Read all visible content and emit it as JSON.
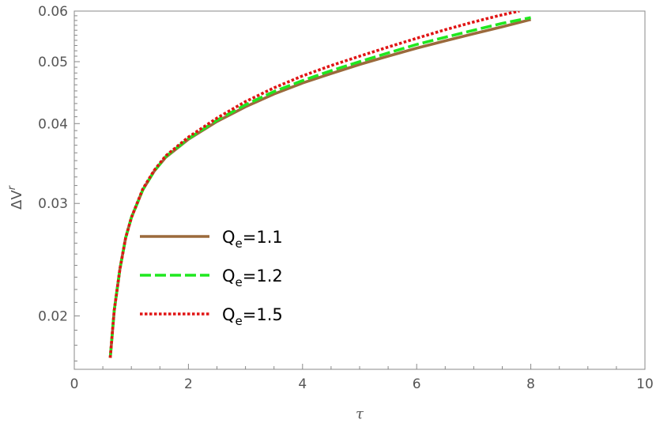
{
  "chart_data": {
    "type": "line",
    "title": "",
    "xlabel": "τ",
    "ylabel": "ΔV",
    "ylabel_sup": "r",
    "xlim": [
      0,
      10
    ],
    "ylim": [
      0.0165,
      0.06
    ],
    "yscale": "log",
    "x_ticks": [
      0,
      2,
      4,
      6,
      8,
      10
    ],
    "x_tick_labels": [
      "0",
      "2",
      "4",
      "6",
      "8",
      "10"
    ],
    "y_ticks": [
      0.02,
      0.03,
      0.04,
      0.05,
      0.06
    ],
    "y_tick_labels": [
      "0.02",
      "0.03",
      "0.04",
      "0.05",
      "0.06"
    ],
    "grid": false,
    "legend_position": "center-left",
    "series": [
      {
        "name": "Q_e=1.1",
        "legend_base": "Q",
        "legend_sub": "e",
        "legend_rest": "=1.1",
        "color": "#9b6a3c",
        "dash": "solid",
        "x": [
          0.63,
          0.7,
          0.8,
          0.9,
          1.0,
          1.2,
          1.4,
          1.6,
          2.0,
          2.5,
          3.0,
          3.5,
          4.0,
          4.5,
          5.0,
          5.5,
          6.0,
          6.5,
          7.0,
          7.5,
          8.0
        ],
        "y": [
          0.0172,
          0.0204,
          0.0237,
          0.0265,
          0.0285,
          0.0315,
          0.0337,
          0.0354,
          0.0378,
          0.0403,
          0.0425,
          0.0445,
          0.0463,
          0.0479,
          0.0495,
          0.051,
          0.0525,
          0.0539,
          0.0553,
          0.0567,
          0.0582
        ]
      },
      {
        "name": "Q_e=1.2",
        "legend_base": "Q",
        "legend_sub": "e",
        "legend_rest": "=1.2",
        "color": "#1fe81f",
        "dash": "dashed",
        "x": [
          0.63,
          0.7,
          0.8,
          0.9,
          1.0,
          1.2,
          1.4,
          1.6,
          2.0,
          2.5,
          3.0,
          3.5,
          4.0,
          4.5,
          5.0,
          5.5,
          6.0,
          6.5,
          7.0,
          7.5,
          8.0
        ],
        "y": [
          0.0172,
          0.0204,
          0.0237,
          0.0265,
          0.0285,
          0.0315,
          0.0337,
          0.0355,
          0.0379,
          0.0405,
          0.0428,
          0.0449,
          0.0467,
          0.0484,
          0.05,
          0.0516,
          0.0532,
          0.0546,
          0.056,
          0.0574,
          0.0586
        ]
      },
      {
        "name": "Q_e=1.5",
        "legend_base": "Q",
        "legend_sub": "e",
        "legend_rest": "=1.5",
        "color": "#e01414",
        "dash": "dotted",
        "x": [
          0.63,
          0.7,
          0.8,
          0.9,
          1.0,
          1.2,
          1.4,
          1.6,
          2.0,
          2.5,
          3.0,
          3.5,
          4.0,
          4.5,
          5.0,
          5.5,
          6.0,
          6.5,
          7.0,
          7.5,
          7.8
        ],
        "y": [
          0.0172,
          0.0204,
          0.0237,
          0.0265,
          0.0285,
          0.0316,
          0.0338,
          0.0356,
          0.0381,
          0.0408,
          0.0433,
          0.0455,
          0.0475,
          0.0493,
          0.051,
          0.0527,
          0.0544,
          0.0561,
          0.0577,
          0.0592,
          0.06
        ]
      }
    ]
  }
}
